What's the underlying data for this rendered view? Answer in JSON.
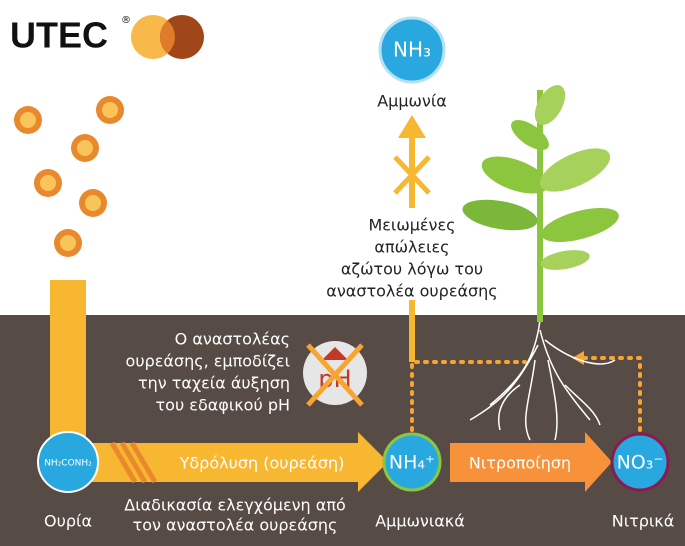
{
  "logo": {
    "text": "UTEC",
    "mark": "®"
  },
  "nodes": {
    "ammonia_gas": {
      "formula": "NH₃",
      "label": "Αμμωνία"
    },
    "urea": {
      "formula": "NH₂CONH₂",
      "label": "Ουρία"
    },
    "ammonium": {
      "formula": "NH₄⁺",
      "label": "Αμμωνιακά"
    },
    "nitrate": {
      "formula": "NO₃⁻",
      "label": "Νιτρικά"
    }
  },
  "arrows": {
    "hydrolysis": "Υδρόλυση (ουρεάση)",
    "nitrification": "Νιτροποίηση"
  },
  "notes": {
    "reduced_losses": [
      "Μειωμένες",
      "απώλειες",
      "αζώτου λόγω του",
      "αναστολέα ουρεάσης"
    ],
    "inhibitor": [
      "Ο αναστολέας",
      "ουρεάσης, εμποδίζει",
      "την ταχεία άυξηση",
      "του εδαφικού pH"
    ],
    "ph_icon": "pH",
    "controlled": [
      "Διαδικασία ελεγχόμενη από",
      "τον αναστολέα ουρεάσης"
    ]
  }
}
